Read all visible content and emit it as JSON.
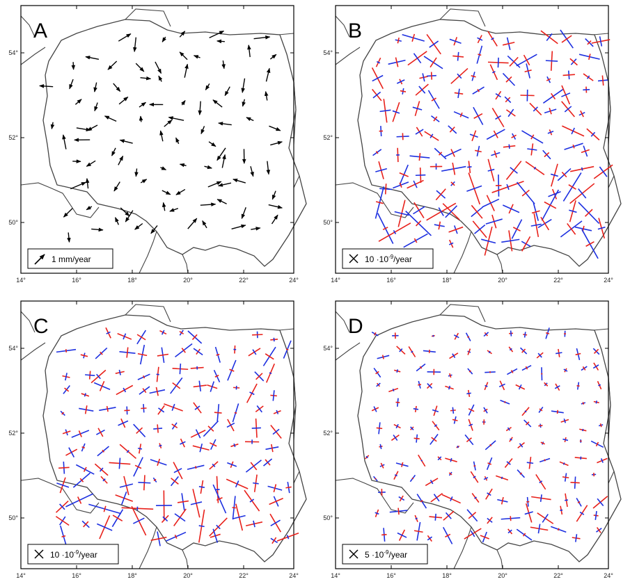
{
  "panels": [
    {
      "letter": "A",
      "legend": {
        "prefix": "1 mm/year",
        "sup": "",
        "suffix": ""
      },
      "legend_symbol": "arrow-icon",
      "content": "velocity arrows"
    },
    {
      "letter": "B",
      "legend": {
        "prefix": "10 ·10",
        "sup": "-9",
        "suffix": "/year"
      },
      "legend_symbol": "cross-icon",
      "content": "strain crosses",
      "colors": {
        "extension": "#e8201a",
        "compression": "#1c2fe0"
      }
    },
    {
      "letter": "C",
      "legend": {
        "prefix": "10 ·10",
        "sup": "-9",
        "suffix": "/year"
      },
      "legend_symbol": "cross-icon",
      "content": "strain crosses",
      "colors": {
        "extension": "#e8201a",
        "compression": "#1c2fe0"
      }
    },
    {
      "letter": "D",
      "legend": {
        "prefix": "5 ·10",
        "sup": "-9",
        "suffix": "/year"
      },
      "legend_symbol": "cross-icon",
      "content": "strain crosses",
      "colors": {
        "extension": "#e8201a",
        "compression": "#1c2fe0"
      }
    }
  ],
  "axes": {
    "lon_labels": [
      "14°",
      "16°",
      "18°",
      "20°",
      "22°",
      "24°"
    ],
    "lat_labels": [
      "54°",
      "52°",
      "50°"
    ]
  },
  "colors": {
    "arrow": "#000000",
    "extension": "#e8201a",
    "compression": "#1c2fe0",
    "border": "#444444"
  }
}
